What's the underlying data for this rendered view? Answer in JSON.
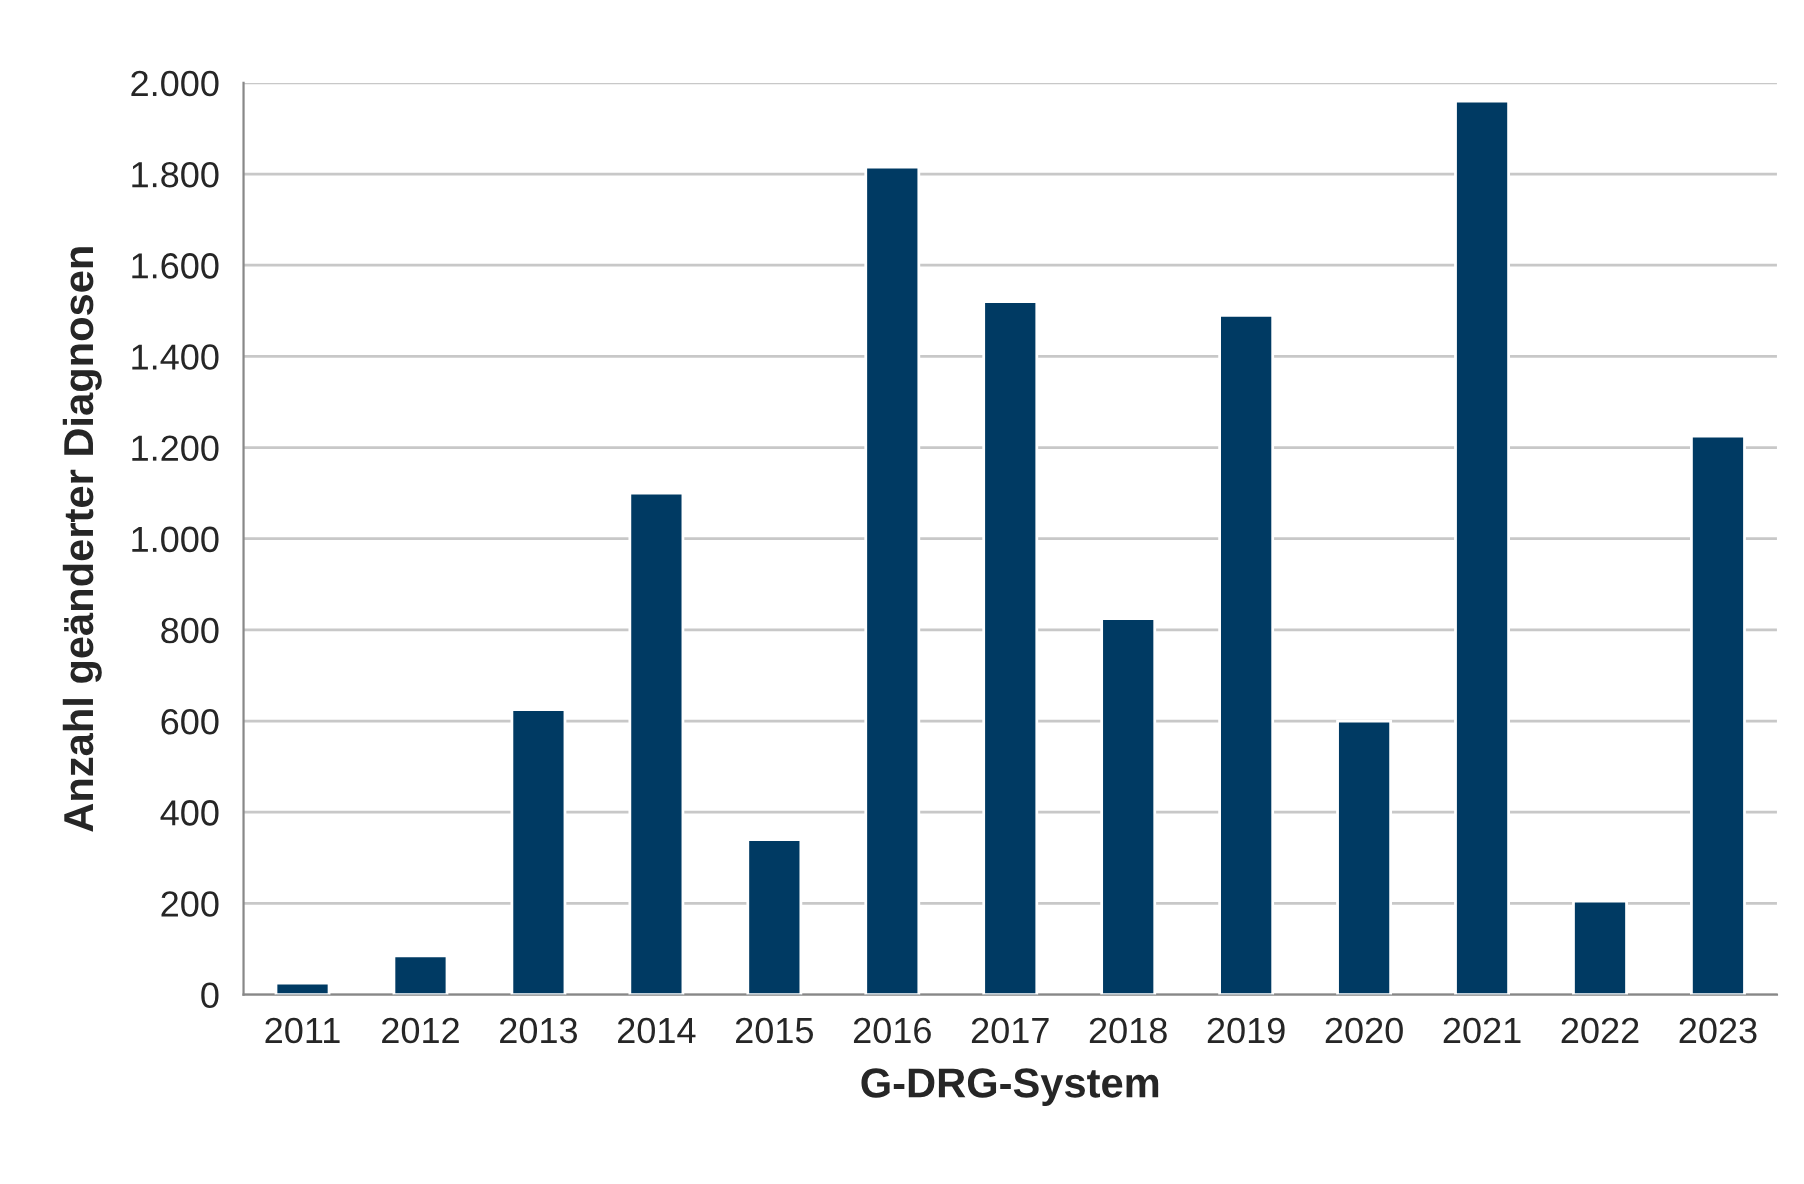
{
  "chart_data": {
    "type": "bar",
    "xlabel": "G-DRG-System",
    "ylabel": "Anzahl geänderter Diagnosen",
    "categories": [
      "2011",
      "2012",
      "2013",
      "2014",
      "2015",
      "2016",
      "2017",
      "2018",
      "2019",
      "2020",
      "2021",
      "2022",
      "2023"
    ],
    "values": [
      25,
      85,
      625,
      1100,
      340,
      1815,
      1520,
      825,
      1490,
      600,
      1960,
      205,
      1225
    ],
    "color": "#003a63",
    "ylim": [
      0,
      2000
    ],
    "yticks": [
      {
        "value": 0,
        "label": "0"
      },
      {
        "value": 200,
        "label": "200"
      },
      {
        "value": 400,
        "label": "400"
      },
      {
        "value": 600,
        "label": "600"
      },
      {
        "value": 800,
        "label": "800"
      },
      {
        "value": 1000,
        "label": "1.000"
      },
      {
        "value": 1200,
        "label": "1.200"
      },
      {
        "value": 1400,
        "label": "1.400"
      },
      {
        "value": 1600,
        "label": "1.600"
      },
      {
        "value": 1800,
        "label": "1.800"
      },
      {
        "value": 2000,
        "label": "2.000"
      }
    ],
    "grid": "y"
  }
}
